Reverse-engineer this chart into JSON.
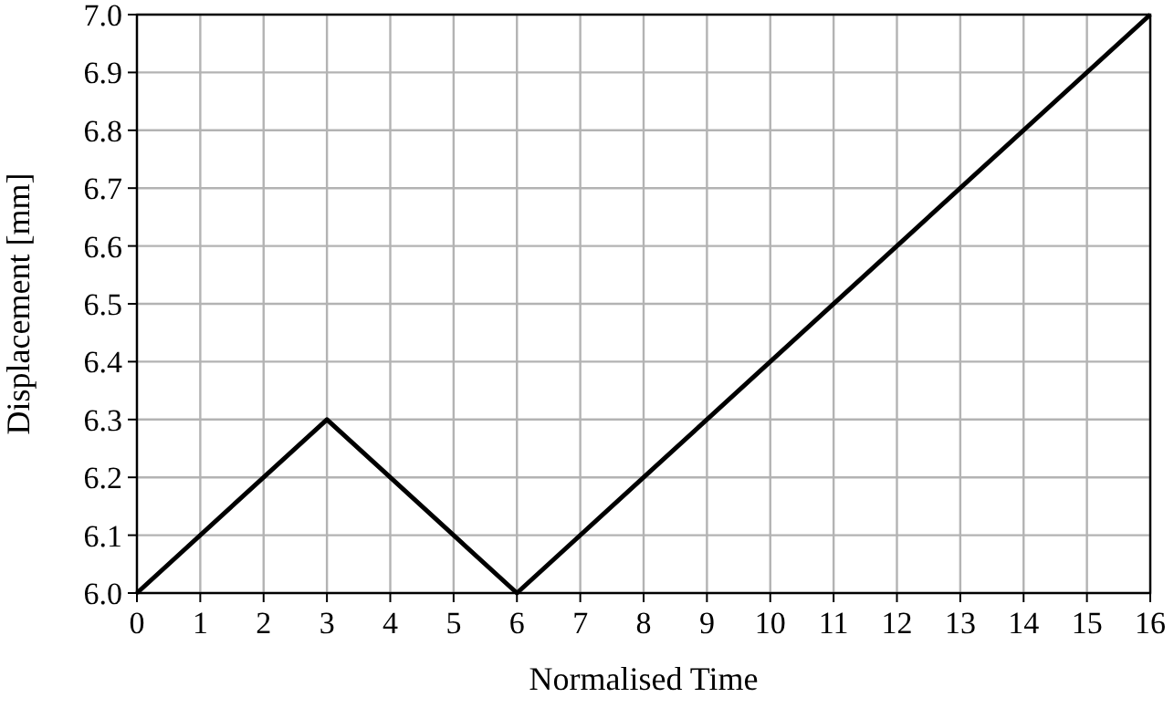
{
  "chart_data": {
    "type": "line",
    "xlabel": "Normalised Time",
    "ylabel": "Displacement [mm]",
    "x": [
      0,
      3,
      6,
      16
    ],
    "series": [
      {
        "color": "#000000",
        "values": [
          6.0,
          6.3,
          6.0,
          7.0
        ]
      }
    ],
    "xlim": [
      0,
      16
    ],
    "xticks": [
      0,
      1,
      2,
      3,
      4,
      5,
      6,
      7,
      8,
      9,
      10,
      11,
      12,
      13,
      14,
      15,
      16
    ],
    "ylim": [
      6.0,
      7.0
    ],
    "yticks": [
      {
        "value": 6,
        "label": "6.0"
      },
      6.1,
      6.2,
      6.3,
      6.4,
      6.5,
      6.6,
      6.7,
      6.8,
      6.9,
      {
        "value": 7,
        "label": "7.0"
      }
    ],
    "grid": true,
    "marker": "none",
    "line_style": "solid"
  }
}
